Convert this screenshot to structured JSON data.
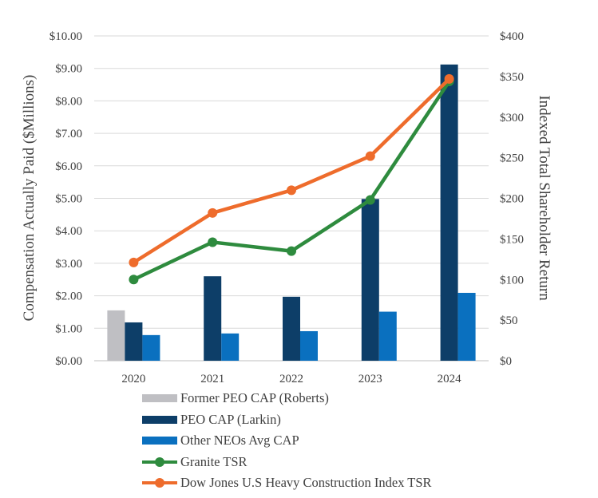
{
  "chart_data": {
    "type": "bar+line",
    "categories": [
      "2020",
      "2021",
      "2022",
      "2023",
      "2024"
    ],
    "left_axis": {
      "label": "Compensation Actually Paid ($Millions)",
      "ylim": [
        0,
        10
      ],
      "ticks": [
        "$0.00",
        "$1.00",
        "$2.00",
        "$3.00",
        "$4.00",
        "$5.00",
        "$6.00",
        "$7.00",
        "$8.00",
        "$9.00",
        "$10.00"
      ]
    },
    "right_axis": {
      "label": "Indexed Total Shareholder Return",
      "ylim": [
        0,
        400
      ],
      "ticks": [
        "$0",
        "$50",
        "$100",
        "$150",
        "$200",
        "$250",
        "$300",
        "$350",
        "$400"
      ]
    },
    "bar_series": [
      {
        "name": "Former PEO CAP (Roberts)",
        "color": "#bfbfc3",
        "values": [
          1.55,
          null,
          null,
          null,
          null
        ]
      },
      {
        "name": "PEO CAP (Larkin)",
        "color": "#0d3e68",
        "values": [
          1.18,
          2.6,
          1.97,
          4.98,
          9.12
        ]
      },
      {
        "name": "Other NEOs Avg CAP",
        "color": "#0a70bf",
        "values": [
          0.79,
          0.84,
          0.91,
          1.51,
          2.09
        ]
      }
    ],
    "line_series": [
      {
        "name": "Granite TSR",
        "color": "#2e8b3e",
        "values": [
          100,
          146,
          135,
          198,
          344
        ]
      },
      {
        "name": "Dow Jones U.S Heavy Construction Index TSR",
        "color": "#ee6c2c",
        "values": [
          121,
          182,
          210,
          252,
          347
        ]
      }
    ],
    "grid": true,
    "legend_position": "bottom"
  },
  "legend": {
    "items": [
      {
        "label": "Former PEO CAP (Roberts)",
        "kind": "bar",
        "color": "#bfbfc3"
      },
      {
        "label": "PEO CAP (Larkin)",
        "kind": "bar",
        "color": "#0d3e68"
      },
      {
        "label": "Other NEOs Avg CAP",
        "kind": "bar",
        "color": "#0a70bf"
      },
      {
        "label": "Granite TSR",
        "kind": "line",
        "color": "#2e8b3e"
      },
      {
        "label": "Dow Jones U.S Heavy Construction Index TSR",
        "kind": "line",
        "color": "#ee6c2c"
      }
    ]
  }
}
